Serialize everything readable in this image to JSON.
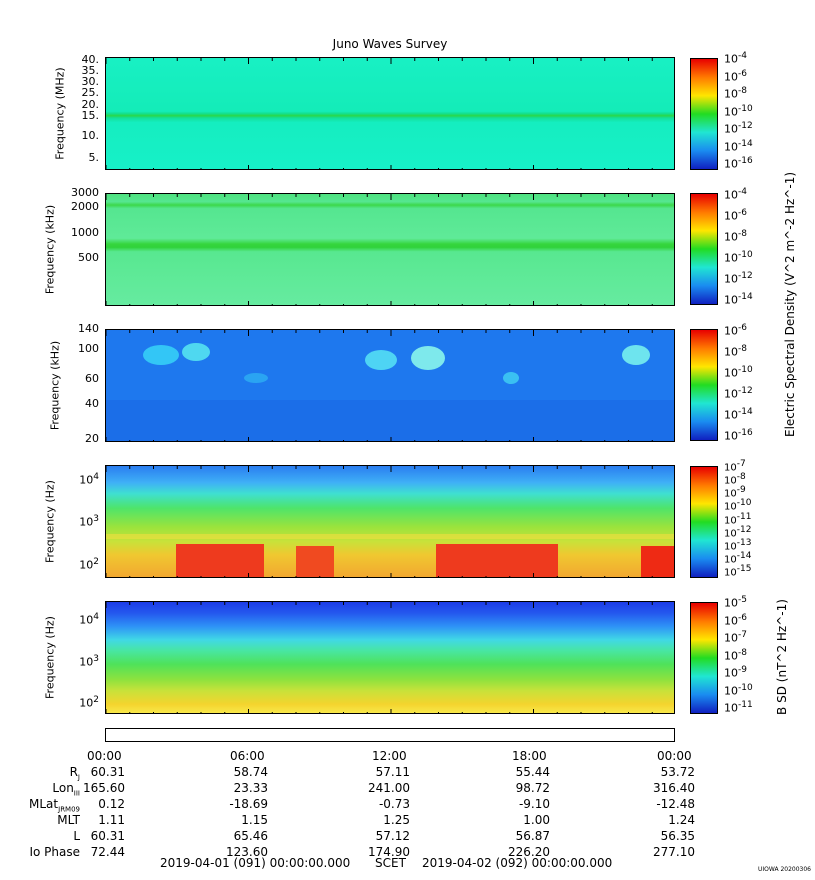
{
  "title": "Juno Waves Survey",
  "chart_data": [
    {
      "type": "heatmap",
      "ylabel": "Frequency (MHz)",
      "yticks": [
        "40.",
        "35.",
        "30.",
        "25.",
        "20.",
        "15.",
        "10.",
        "5."
      ],
      "colorbar_ticks": [
        "10^-4",
        "10^-6",
        "10^-8",
        "10^-10",
        "10^-12",
        "10^-14",
        "10^-16"
      ],
      "features": "Uniform cyan-green background with a horizontal green band near 21 MHz"
    },
    {
      "type": "heatmap",
      "ylabel": "Frequency (kHz)",
      "yticks": [
        "3000",
        "2000",
        "1000",
        "500"
      ],
      "colorbar_ticks": [
        "10^-4",
        "10^-6",
        "10^-8",
        "10^-10",
        "10^-12",
        "10^-14"
      ],
      "colorbar_label": "Electric Spectral Density (V^2 m^-2 Hz^-1)",
      "features": "Green background with bands near 2100 kHz and 700 kHz"
    },
    {
      "type": "heatmap",
      "ylabel": "Frequency (kHz)",
      "yticks": [
        "140",
        "100",
        "60",
        "40",
        "20"
      ],
      "colorbar_ticks": [
        "10^-6",
        "10^-8",
        "10^-10",
        "10^-12",
        "10^-14",
        "10^-16"
      ],
      "features": "Blue background with cyan emission blobs near 100 kHz"
    },
    {
      "type": "heatmap",
      "ylabel": "Frequency (Hz)",
      "yticks": [
        "10^4",
        "10^3",
        "10^2"
      ],
      "colorbar_ticks": [
        "10^-7",
        "10^-8",
        "10^-9",
        "10^-10",
        "10^-11",
        "10^-12",
        "10^-13",
        "10^-14",
        "10^-15"
      ],
      "features": "Blue upper band, green middle, red-orange intense bursts near 100-300 Hz"
    },
    {
      "type": "heatmap",
      "ylabel": "Frequency (Hz)",
      "yticks": [
        "10^4",
        "10^3",
        "10^2"
      ],
      "colorbar_ticks": [
        "10^-5",
        "10^-6",
        "10^-7",
        "10^-8",
        "10^-9",
        "10^-10",
        "10^-11"
      ],
      "colorbar_label": "B SD (nT^2 Hz^-1)",
      "features": "Blue at top grading through cyan and green to yellow at bottom"
    }
  ],
  "time_labels": [
    "00:00",
    "06:00",
    "12:00",
    "18:00",
    "00:00"
  ],
  "ephemeris": [
    {
      "label": "R",
      "sub": "J",
      "values": [
        "60.31",
        "58.74",
        "57.11",
        "55.44",
        "53.72"
      ]
    },
    {
      "label": "Lon",
      "sub": "III",
      "values": [
        "165.60",
        "23.33",
        "241.00",
        "98.72",
        "316.40"
      ]
    },
    {
      "label": "MLat",
      "sub": "JRM09",
      "values": [
        "0.12",
        "-18.69",
        "-0.73",
        "-9.10",
        "-12.48"
      ]
    },
    {
      "label": "MLT",
      "sub": "",
      "values": [
        "1.11",
        "1.15",
        "1.25",
        "1.00",
        "1.24"
      ]
    },
    {
      "label": "L",
      "sub": "",
      "values": [
        "60.31",
        "65.46",
        "57.12",
        "56.87",
        "56.35"
      ]
    },
    {
      "label": "Io Phase",
      "sub": "",
      "values": [
        "72.44",
        "123.60",
        "174.90",
        "226.20",
        "277.10"
      ]
    }
  ],
  "footer": {
    "start": "2019-04-01 (091) 00:00:00.000",
    "scet": "SCET",
    "end": "2019-04-02 (092) 00:00:00.000"
  },
  "credit": "UIOWA 20200306"
}
